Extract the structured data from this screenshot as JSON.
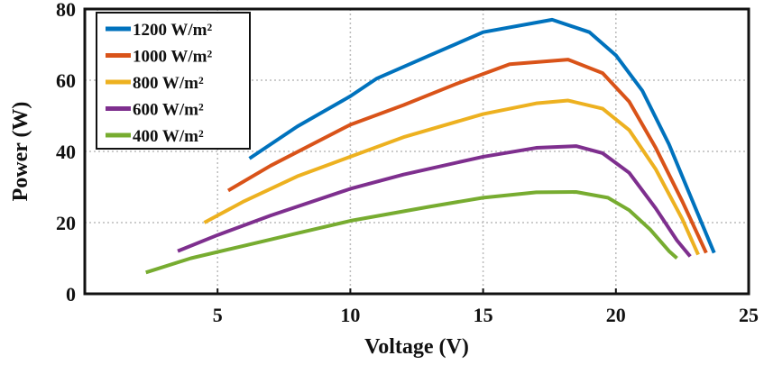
{
  "chart_data": {
    "type": "line",
    "title": "",
    "xlabel": "Voltage (V)",
    "ylabel": "Power (W)",
    "xlim": [
      0,
      25
    ],
    "ylim": [
      0,
      80
    ],
    "xticks": [
      5,
      10,
      15,
      20,
      25
    ],
    "yticks": [
      0,
      20,
      40,
      60,
      80
    ],
    "grid": true,
    "legend_position": "top-left",
    "series": [
      {
        "name": "1200 W/m²",
        "color": "#0072BD",
        "points": [
          [
            6.2,
            38
          ],
          [
            8,
            47
          ],
          [
            10,
            55.5
          ],
          [
            11,
            60.5
          ],
          [
            13,
            67
          ],
          [
            15,
            73.5
          ],
          [
            17.6,
            77
          ],
          [
            19,
            73.5
          ],
          [
            20,
            67
          ],
          [
            21,
            57
          ],
          [
            22,
            42
          ],
          [
            23,
            24
          ],
          [
            23.7,
            11.5
          ]
        ]
      },
      {
        "name": "1000 W/m²",
        "color": "#D95319",
        "points": [
          [
            5.4,
            29
          ],
          [
            7,
            36
          ],
          [
            10,
            47.5
          ],
          [
            12,
            53
          ],
          [
            14,
            59
          ],
          [
            16,
            64.5
          ],
          [
            18.2,
            65.8
          ],
          [
            19.5,
            62
          ],
          [
            20.5,
            54
          ],
          [
            21.5,
            41
          ],
          [
            22.5,
            26
          ],
          [
            23.4,
            11.5
          ]
        ]
      },
      {
        "name": "800 W/m²",
        "color": "#EDB120",
        "points": [
          [
            4.5,
            20
          ],
          [
            6,
            26
          ],
          [
            8,
            33
          ],
          [
            10,
            38.5
          ],
          [
            12,
            44
          ],
          [
            15,
            50.5
          ],
          [
            17,
            53.5
          ],
          [
            18.2,
            54.3
          ],
          [
            19.5,
            52
          ],
          [
            20.5,
            46
          ],
          [
            21.5,
            35
          ],
          [
            22.5,
            21
          ],
          [
            23.1,
            11
          ]
        ]
      },
      {
        "name": "600 W/m²",
        "color": "#7E2F8E",
        "points": [
          [
            3.5,
            12
          ],
          [
            5,
            16.5
          ],
          [
            7,
            22
          ],
          [
            10,
            29.5
          ],
          [
            12,
            33.5
          ],
          [
            15,
            38.5
          ],
          [
            17,
            41
          ],
          [
            18.5,
            41.5
          ],
          [
            19.5,
            39.5
          ],
          [
            20.5,
            34
          ],
          [
            21.5,
            24
          ],
          [
            22.3,
            15
          ],
          [
            22.8,
            10.5
          ]
        ]
      },
      {
        "name": "400 W/m²",
        "color": "#77AC30",
        "points": [
          [
            2.3,
            6
          ],
          [
            4,
            10
          ],
          [
            6,
            13.5
          ],
          [
            8,
            17
          ],
          [
            10,
            20.5
          ],
          [
            13,
            24.5
          ],
          [
            15,
            27
          ],
          [
            17,
            28.5
          ],
          [
            18.5,
            28.6
          ],
          [
            19.7,
            27
          ],
          [
            20.5,
            23.5
          ],
          [
            21.3,
            18
          ],
          [
            22,
            12
          ],
          [
            22.3,
            10
          ]
        ]
      }
    ]
  }
}
